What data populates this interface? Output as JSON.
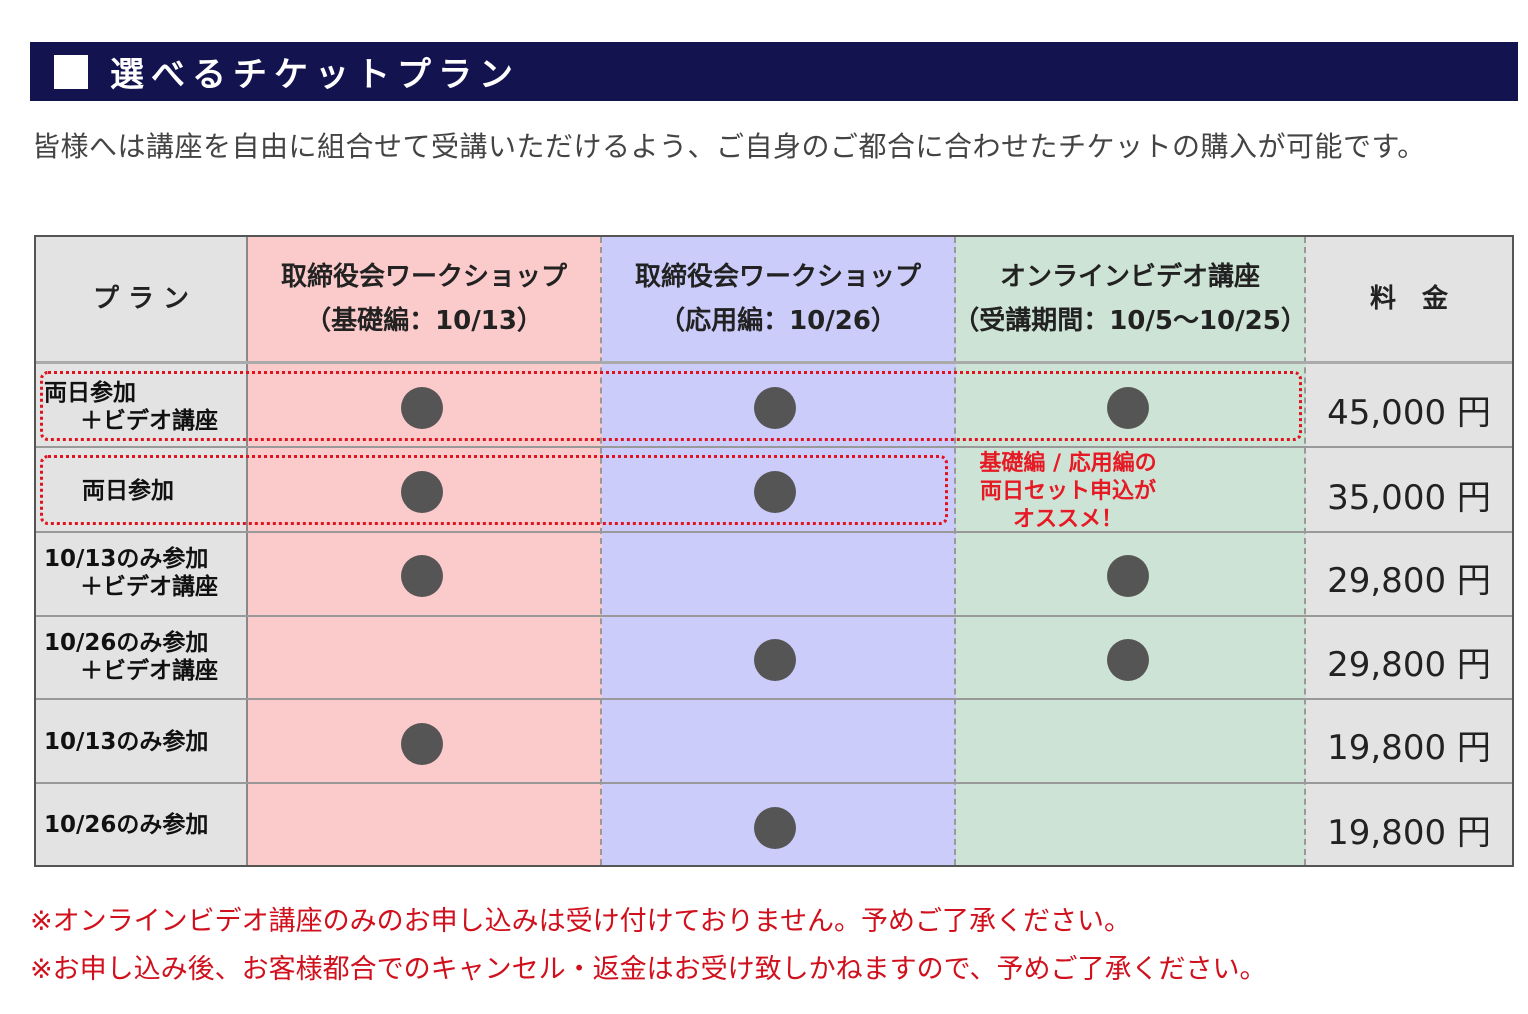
{
  "section": {
    "title": "選べるチケットプラン",
    "intro": "皆様へは講座を自由に組合せて受講いただけるよう、ご自身のご都合に合わせたチケットの購入が可能です。"
  },
  "table": {
    "headers": {
      "plan": "プ ラ ン",
      "col1_line1": "取締役会ワークショップ",
      "col1_line2": "（基礎編：10/13）",
      "col2_line1": "取締役会ワークショップ",
      "col2_line2": "（応用編：10/26）",
      "col3_line1": "オンラインビデオ講座",
      "col3_line2": "（受講期間：10/5〜10/25）",
      "price": "料　金"
    },
    "rows": [
      {
        "label1": "両日参加",
        "label2": "＋ビデオ講座",
        "basic": true,
        "advanced": true,
        "video": true,
        "price": "45,000 円"
      },
      {
        "label1": "両日参加",
        "label2": "",
        "basic": true,
        "advanced": true,
        "video": false,
        "price": "35,000 円"
      },
      {
        "label1": "10/13のみ参加",
        "label2": "＋ビデオ講座",
        "basic": true,
        "advanced": false,
        "video": true,
        "price": "29,800 円"
      },
      {
        "label1": "10/26のみ参加",
        "label2": "＋ビデオ講座",
        "basic": false,
        "advanced": true,
        "video": true,
        "price": "29,800 円"
      },
      {
        "label1": "10/13のみ参加",
        "label2": "",
        "basic": true,
        "advanced": false,
        "video": false,
        "price": "19,800 円"
      },
      {
        "label1": "10/26のみ参加",
        "label2": "",
        "basic": false,
        "advanced": true,
        "video": false,
        "price": "19,800 円"
      }
    ],
    "recommend": {
      "line1": "基礎編 / 応用編の",
      "line2": "両日セット申込が",
      "line3": "オススメ！"
    }
  },
  "notes": {
    "note1": "※オンラインビデオ講座のみのお申し込みは受け付けておりません。予めご了承ください。",
    "note2": "※お申し込み後、お客様都合でのキャンセル・返金はお受け致しかねますので、予めご了承ください。"
  },
  "colors": {
    "header_bg": "#13134f",
    "basic_col": "#fbcacb",
    "advanced_col": "#ccccfb",
    "video_col": "#cde3d6",
    "accent_red": "#e0141f"
  }
}
